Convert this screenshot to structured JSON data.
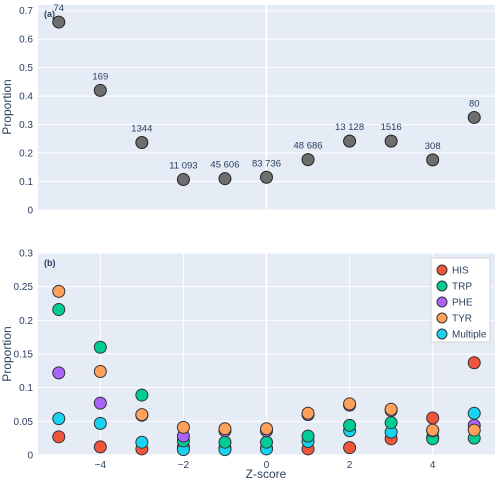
{
  "chart_data": [
    {
      "type": "scatter",
      "panel_label": "(a)",
      "ylabel": "Proportion",
      "xlabel": "",
      "xlim": [
        -5.5,
        5.5
      ],
      "ylim": [
        0,
        0.72
      ],
      "x_ticks": [],
      "y_ticks": [
        0,
        0.1,
        0.2,
        0.3,
        0.4,
        0.5,
        0.6,
        0.7
      ],
      "y_tick_labels": [
        "0",
        "0.1",
        "0.2",
        "0.3",
        "0.4",
        "0.5",
        "0.6",
        "0.7"
      ],
      "grid": true,
      "marker_color": "#6e6e6e",
      "points": [
        {
          "x": -5,
          "y": 0.66,
          "label": "74"
        },
        {
          "x": -4,
          "y": 0.42,
          "label": "169"
        },
        {
          "x": -3,
          "y": 0.237,
          "label": "1344"
        },
        {
          "x": -2,
          "y": 0.107,
          "label": "11 093"
        },
        {
          "x": -1,
          "y": 0.11,
          "label": "45 606"
        },
        {
          "x": 0,
          "y": 0.115,
          "label": "83 736"
        },
        {
          "x": 1,
          "y": 0.177,
          "label": "48 686"
        },
        {
          "x": 2,
          "y": 0.242,
          "label": "13 128"
        },
        {
          "x": 3,
          "y": 0.242,
          "label": "1516"
        },
        {
          "x": 4,
          "y": 0.176,
          "label": "308"
        },
        {
          "x": 5,
          "y": 0.325,
          "label": "80"
        }
      ]
    },
    {
      "type": "scatter",
      "panel_label": "(b)",
      "ylabel": "Proportion",
      "xlabel": "Z-score",
      "xlim": [
        -5.5,
        5.5
      ],
      "ylim": [
        0,
        0.3
      ],
      "x_ticks": [
        -4,
        -2,
        0,
        2,
        4
      ],
      "x_tick_labels": [
        "−4",
        "−2",
        "0",
        "2",
        "4"
      ],
      "y_ticks": [
        0,
        0.05,
        0.1,
        0.15,
        0.2,
        0.25,
        0.3
      ],
      "y_tick_labels": [
        "0",
        "0.05",
        "0.1",
        "0.15",
        "0.2",
        "0.25",
        "0.3"
      ],
      "grid": true,
      "legend_position": "top-right",
      "series": [
        {
          "name": "HIS",
          "color": "#ef553b",
          "x": [
            -5,
            -4,
            -3,
            -2,
            -1,
            0,
            1,
            2,
            3,
            4,
            5
          ],
          "y": [
            0.027,
            0.012,
            0.009,
            0.012,
            0.01,
            0.01,
            0.009,
            0.011,
            0.024,
            0.055,
            0.137
          ]
        },
        {
          "name": "TRP",
          "color": "#00cc96",
          "x": [
            -5,
            -4,
            -3,
            -2,
            -1,
            0,
            1,
            2,
            3,
            4,
            5
          ],
          "y": [
            0.216,
            0.16,
            0.089,
            0.021,
            0.019,
            0.019,
            0.028,
            0.044,
            0.048,
            0.024,
            0.025
          ]
        },
        {
          "name": "PHE",
          "color": "#ab63fa",
          "x": [
            -5,
            -4,
            -3,
            -2,
            -1,
            0,
            1,
            2,
            3,
            4,
            5
          ],
          "y": [
            0.122,
            0.077,
            0.059,
            0.028,
            0.036,
            0.036,
            0.06,
            0.074,
            0.066,
            0.036,
            0.044
          ]
        },
        {
          "name": "TYR",
          "color": "#ffa15a",
          "x": [
            -5,
            -4,
            -3,
            -2,
            -1,
            0,
            1,
            2,
            3,
            4,
            5
          ],
          "y": [
            0.243,
            0.124,
            0.06,
            0.041,
            0.039,
            0.039,
            0.062,
            0.076,
            0.068,
            0.037,
            0.037
          ]
        },
        {
          "name": "Multiple",
          "color": "#19d3f3",
          "x": [
            -5,
            -4,
            -3,
            -2,
            -1,
            0,
            1,
            2,
            3,
            4,
            5
          ],
          "y": [
            0.054,
            0.047,
            0.019,
            0.008,
            0.008,
            0.009,
            0.02,
            0.036,
            0.034,
            0.026,
            0.062
          ]
        }
      ]
    }
  ]
}
